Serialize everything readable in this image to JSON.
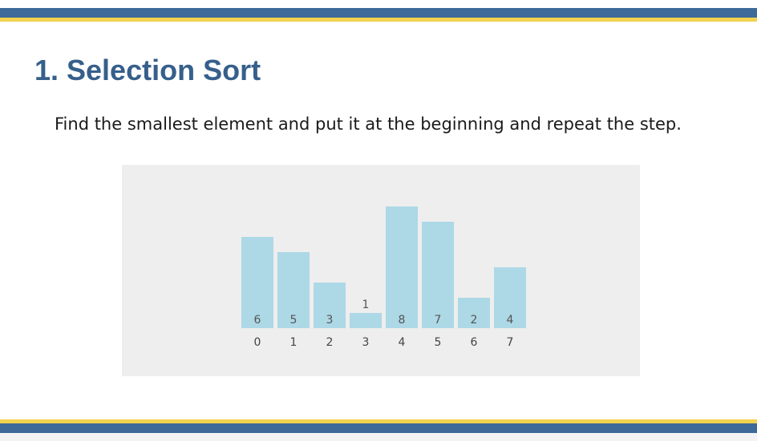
{
  "slide": {
    "title": "1. Selection Sort",
    "body": "Find the smallest element and put it at the beginning and repeat the step."
  },
  "colors": {
    "brand_blue": "#3d6a98",
    "accent_yellow": "#f2d24e",
    "title_blue": "#365f8b",
    "bar_fill": "#add8e6",
    "panel_bg": "#eeeeee"
  },
  "chart_data": {
    "type": "bar",
    "categories": [
      "0",
      "1",
      "2",
      "3",
      "4",
      "5",
      "6",
      "7"
    ],
    "values": [
      6,
      5,
      3,
      1,
      8,
      7,
      2,
      4
    ],
    "value_labels": [
      "6",
      "5",
      "3",
      "1",
      "8",
      "7",
      "2",
      "4"
    ],
    "title": "",
    "xlabel": "",
    "ylabel": "",
    "ylim": [
      0,
      8
    ],
    "grid": false
  }
}
